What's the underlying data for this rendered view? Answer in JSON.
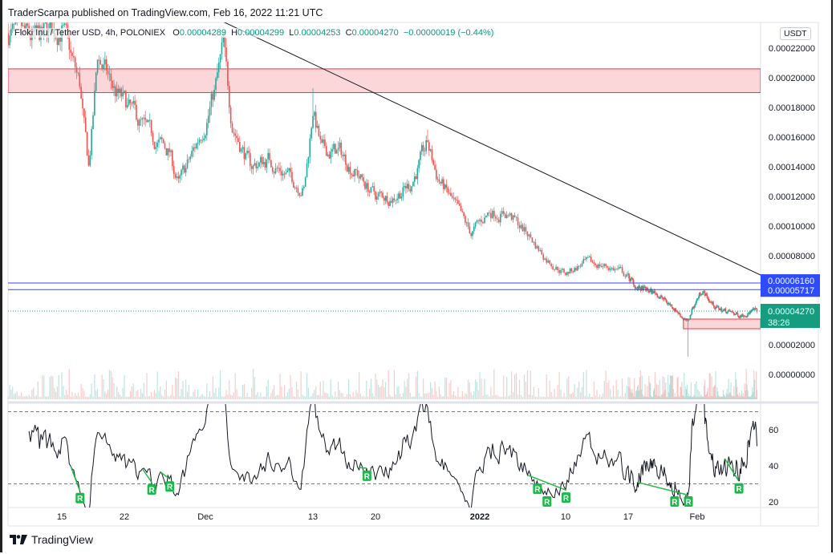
{
  "header": {
    "published": "TraderScarpa published on TradingView.com, Feb 16, 2022 11:21 UTC",
    "symbol": "Floki Inu / Tether USD, 4h, POLONIEX",
    "ohlc": {
      "o_label": "O",
      "o": "0.00004289",
      "h_label": "H",
      "h": "0.00004299",
      "l_label": "L",
      "l": "0.00004253",
      "c_label": "C",
      "c": "0.00004270",
      "change": "−0.00000019 (−0.44%)"
    },
    "currency": "USDT"
  },
  "footer": {
    "logo_text": "TradingView"
  },
  "colors": {
    "up": "#26a69a",
    "down": "#ef5350",
    "zone": "#f23645",
    "level_line": "#3d3dff",
    "level_label": "#2f4bff",
    "last_price": "#169d7f",
    "rsi": "#131722",
    "divergence": "#22bb44"
  },
  "chart_data": {
    "type": "candlestick",
    "interval": "4h",
    "ylim": [
      0,
      0.00024
    ],
    "price_ticks": [
      "0.00022000",
      "0.00020000",
      "0.00018000",
      "0.00016000",
      "0.00014000",
      "0.00012000",
      "0.00010000",
      "0.00008000",
      "0.00002000",
      "0.00000000"
    ],
    "x_ticks": [
      {
        "label": "15",
        "date": "2021-11-15"
      },
      {
        "label": "22",
        "date": "2021-11-22"
      },
      {
        "label": "Dec",
        "date": "2021-12-01"
      },
      {
        "label": "13",
        "date": "2021-12-13"
      },
      {
        "label": "20",
        "date": "2021-12-20"
      },
      {
        "label": "2022",
        "date": "2022-01-01"
      },
      {
        "label": "10",
        "date": "2022-01-10"
      },
      {
        "label": "17",
        "date": "2022-01-17"
      },
      {
        "label": "Feb",
        "date": "2022-02-01"
      }
    ],
    "close_path": [
      [
        "2021-11-09",
        0.00023
      ],
      [
        "2021-11-12",
        0.000225
      ],
      [
        "2021-11-15",
        0.000235
      ],
      [
        "2021-11-17",
        0.000195
      ],
      [
        "2021-11-18",
        0.00014
      ],
      [
        "2021-11-19",
        0.000215
      ],
      [
        "2021-11-21",
        0.00019
      ],
      [
        "2021-11-23",
        0.000175
      ],
      [
        "2021-11-25",
        0.00016
      ],
      [
        "2021-11-27",
        0.00015
      ],
      [
        "2021-11-28",
        0.000128
      ],
      [
        "2021-11-30",
        0.000155
      ],
      [
        "2021-12-02",
        0.00019
      ],
      [
        "2021-12-03",
        0.00022
      ],
      [
        "2021-12-04",
        0.00017
      ],
      [
        "2021-12-06",
        0.00014
      ],
      [
        "2021-12-08",
        0.000145
      ],
      [
        "2021-12-10",
        0.000135
      ],
      [
        "2021-12-12",
        0.000125
      ],
      [
        "2021-12-13",
        0.00018
      ],
      [
        "2021-12-14",
        0.00015
      ],
      [
        "2021-12-16",
        0.00015
      ],
      [
        "2021-12-18",
        0.000135
      ],
      [
        "2021-12-20",
        0.00012
      ],
      [
        "2021-12-22",
        0.00012
      ],
      [
        "2021-12-24",
        0.000128
      ],
      [
        "2021-12-26",
        0.000155
      ],
      [
        "2021-12-27",
        0.000135
      ],
      [
        "2021-12-29",
        0.000115
      ],
      [
        "2021-12-31",
        9.5e-05
      ],
      [
        "2022-01-02",
        0.00011
      ],
      [
        "2022-01-04",
        0.000108
      ],
      [
        "2022-01-06",
        9.5e-05
      ],
      [
        "2022-01-08",
        7.8e-05
      ],
      [
        "2022-01-10",
        6.8e-05
      ],
      [
        "2022-01-12",
        7.5e-05
      ],
      [
        "2022-01-14",
        7.4e-05
      ],
      [
        "2022-01-16",
        7e-05
      ],
      [
        "2022-01-19",
        5.8e-05
      ],
      [
        "2022-01-23",
        5.5e-05
      ],
      [
        "2022-01-27",
        4.5e-05
      ],
      [
        "2022-01-30",
        3.5e-05
      ],
      [
        "2022-01-31",
        4.5e-05
      ],
      [
        "2022-02-02",
        5.7e-05
      ],
      [
        "2022-02-05",
        4.5e-05
      ],
      [
        "2022-02-10",
        4e-05
      ],
      [
        "2022-02-14",
        4.3e-05
      ]
    ],
    "resistance_zone": {
      "from": 0.00019,
      "to": 0.000206
    },
    "support_zone": {
      "from": 3.08e-05,
      "to": 3.73e-05,
      "start": "2022-01-29"
    },
    "trendline": [
      [
        "2021-11-28",
        0.000252
      ],
      [
        "2022-02-15",
        6.67e-05
      ]
    ],
    "levels": [
      {
        "price": 6.16e-05,
        "label": "0.00006160"
      },
      {
        "price": 5.717e-05,
        "label": "0.00005717"
      }
    ],
    "last_price": {
      "price": 4.27e-05,
      "label": "0.00004270",
      "countdown": "38:26"
    },
    "rsi": {
      "period": 14,
      "ticks": [
        "60",
        "40",
        "20"
      ],
      "bands": [
        70,
        30
      ],
      "markers": [
        {
          "label": "R",
          "date": "2021-11-17"
        },
        {
          "label": "R",
          "date": "2021-11-25"
        },
        {
          "label": "R",
          "date": "2021-11-27"
        },
        {
          "label": "R",
          "date": "2021-12-19"
        },
        {
          "label": "R",
          "date": "2022-01-07"
        },
        {
          "label": "R",
          "date": "2022-01-08"
        },
        {
          "label": "R",
          "date": "2022-01-10"
        },
        {
          "label": "R",
          "date": "2022-01-27"
        },
        {
          "label": "R",
          "date": "2022-01-30"
        },
        {
          "label": "R",
          "date": "2022-02-10"
        }
      ],
      "divergences": [
        [
          "2021-11-16",
          "2021-11-17"
        ],
        [
          "2021-11-24",
          "2021-11-25"
        ],
        [
          "2021-11-26",
          "2021-11-27"
        ],
        [
          "2021-12-18",
          "2021-12-19"
        ],
        [
          "2022-01-06",
          "2022-01-10"
        ],
        [
          "2022-01-19",
          "2022-01-30"
        ],
        [
          "2022-02-07",
          "2022-02-10"
        ]
      ]
    }
  }
}
